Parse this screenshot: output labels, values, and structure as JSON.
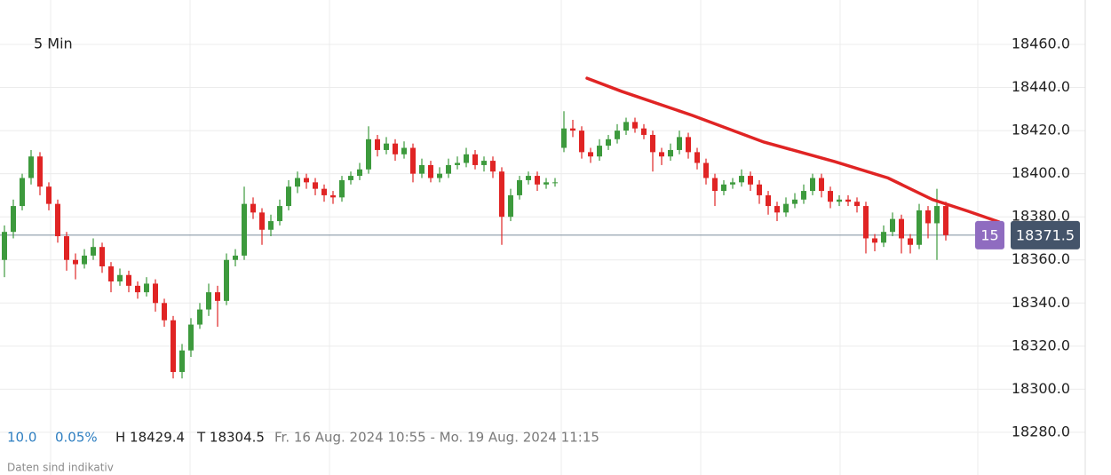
{
  "chart_data": {
    "type": "candlestick",
    "interval": "5 Min",
    "ohlc": [
      [
        18360,
        18376,
        18352,
        18373
      ],
      [
        18373,
        18388,
        18370,
        18385
      ],
      [
        18385,
        18400,
        18383,
        18398
      ],
      [
        18398,
        18411,
        18395,
        18408
      ],
      [
        18408,
        18410,
        18390,
        18394
      ],
      [
        18394,
        18396,
        18383,
        18386
      ],
      [
        18386,
        18388,
        18368,
        18371
      ],
      [
        18371,
        18373,
        18355,
        18360
      ],
      [
        18360,
        18363,
        18351,
        18358
      ],
      [
        18358,
        18365,
        18356,
        18362
      ],
      [
        18362,
        18370,
        18360,
        18366
      ],
      [
        18366,
        18368,
        18354,
        18357
      ],
      [
        18357,
        18359,
        18345,
        18350
      ],
      [
        18350,
        18356,
        18348,
        18353
      ],
      [
        18353,
        18355,
        18345,
        18348
      ],
      [
        18348,
        18350,
        18342,
        18345
      ],
      [
        18345,
        18352,
        18343,
        18349
      ],
      [
        18349,
        18351,
        18336,
        18340
      ],
      [
        18340,
        18342,
        18329,
        18332
      ],
      [
        18332,
        18334,
        18305,
        18308
      ],
      [
        18308,
        18321,
        18305,
        18318
      ],
      [
        18318,
        18333,
        18315,
        18330
      ],
      [
        18330,
        18340,
        18328,
        18337
      ],
      [
        18337,
        18349,
        18334,
        18345
      ],
      [
        18345,
        18348,
        18329,
        18341
      ],
      [
        18341,
        18363,
        18339,
        18360
      ],
      [
        18360,
        18365,
        18357,
        18362
      ],
      [
        18362,
        18394,
        18360,
        18386
      ],
      [
        18386,
        18389,
        18379,
        18382
      ],
      [
        18382,
        18384,
        18367,
        18374
      ],
      [
        18374,
        18381,
        18371,
        18378
      ],
      [
        18378,
        18388,
        18376,
        18385
      ],
      [
        18385,
        18397,
        18383,
        18394
      ],
      [
        18394,
        18401,
        18391,
        18398
      ],
      [
        18398,
        18400,
        18393,
        18396
      ],
      [
        18396,
        18398,
        18390,
        18393
      ],
      [
        18393,
        18395,
        18387,
        18390
      ],
      [
        18390,
        18392,
        18386,
        18389
      ],
      [
        18389,
        18399,
        18387,
        18397
      ],
      [
        18397,
        18401,
        18395,
        18399
      ],
      [
        18399,
        18405,
        18397,
        18402
      ],
      [
        18402,
        18422,
        18400,
        18416
      ],
      [
        18416,
        18418,
        18408,
        18411
      ],
      [
        18411,
        18417,
        18409,
        18414
      ],
      [
        18414,
        18416,
        18406,
        18409
      ],
      [
        18409,
        18415,
        18407,
        18412
      ],
      [
        18412,
        18414,
        18396,
        18400
      ],
      [
        18400,
        18407,
        18398,
        18404
      ],
      [
        18404,
        18406,
        18396,
        18398
      ],
      [
        18398,
        18403,
        18396,
        18400
      ],
      [
        18400,
        18407,
        18398,
        18404
      ],
      [
        18404,
        18408,
        18402,
        18405
      ],
      [
        18405,
        18412,
        18403,
        18409
      ],
      [
        18409,
        18411,
        18402,
        18404
      ],
      [
        18404,
        18408,
        18401,
        18406
      ],
      [
        18406,
        18408,
        18398,
        18401
      ],
      [
        18401,
        18403,
        18367,
        18380
      ],
      [
        18380,
        18393,
        18378,
        18390
      ],
      [
        18390,
        18399,
        18388,
        18397
      ],
      [
        18397,
        18401,
        18395,
        18399
      ],
      [
        18399,
        18401,
        18392,
        18395
      ],
      [
        18395,
        18398,
        18393,
        18396
      ],
      [
        18396,
        18398,
        18394,
        18396
      ],
      [
        18412,
        18429,
        18410,
        18421
      ],
      [
        18421,
        18425,
        18417,
        18420
      ],
      [
        18420,
        18422,
        18407,
        18410
      ],
      [
        18410,
        18412,
        18405,
        18408
      ],
      [
        18408,
        18416,
        18406,
        18413
      ],
      [
        18413,
        18418,
        18411,
        18416
      ],
      [
        18416,
        18423,
        18414,
        18420
      ],
      [
        18420,
        18426,
        18418,
        18424
      ],
      [
        18424,
        18426,
        18419,
        18421
      ],
      [
        18421,
        18423,
        18416,
        18418
      ],
      [
        18418,
        18420,
        18401,
        18410
      ],
      [
        18410,
        18412,
        18404,
        18408
      ],
      [
        18408,
        18414,
        18406,
        18411
      ],
      [
        18411,
        18420,
        18409,
        18417
      ],
      [
        18417,
        18419,
        18407,
        18410
      ],
      [
        18410,
        18412,
        18402,
        18405
      ],
      [
        18405,
        18407,
        18395,
        18398
      ],
      [
        18398,
        18400,
        18385,
        18392
      ],
      [
        18392,
        18397,
        18390,
        18395
      ],
      [
        18395,
        18398,
        18393,
        18396
      ],
      [
        18396,
        18402,
        18394,
        18399
      ],
      [
        18399,
        18401,
        18392,
        18395
      ],
      [
        18395,
        18397,
        18386,
        18390
      ],
      [
        18390,
        18392,
        18381,
        18385
      ],
      [
        18385,
        18387,
        18378,
        18382
      ],
      [
        18382,
        18389,
        18380,
        18386
      ],
      [
        18386,
        18391,
        18384,
        18388
      ],
      [
        18388,
        18395,
        18386,
        18392
      ],
      [
        18392,
        18400,
        18390,
        18398
      ],
      [
        18398,
        18400,
        18389,
        18392
      ],
      [
        18392,
        18394,
        18384,
        18387
      ],
      [
        18387,
        18390,
        18385,
        18388
      ],
      [
        18388,
        18390,
        18385,
        18387
      ],
      [
        18387,
        18389,
        18382,
        18385
      ],
      [
        18385,
        18387,
        18363,
        18370
      ],
      [
        18370,
        18372,
        18364,
        18368
      ],
      [
        18368,
        18376,
        18366,
        18373
      ],
      [
        18373,
        18382,
        18371,
        18379
      ],
      [
        18379,
        18381,
        18363,
        18370
      ],
      [
        18370,
        18372,
        18363,
        18367
      ],
      [
        18367,
        18386,
        18365,
        18383
      ],
      [
        18383,
        18385,
        18370,
        18377
      ],
      [
        18377,
        18393,
        18360,
        18385
      ],
      [
        18385,
        18387,
        18369,
        18371.5
      ]
    ],
    "up_color": "#3d9a3d",
    "down_color": "#e02424",
    "trend": {
      "color": "#e02424",
      "x": [
        65.6,
        69.5,
        77.5,
        85.5,
        93.5,
        99.5,
        104.5,
        108.5,
        112
      ],
      "values": [
        18444.3,
        18438.2,
        18427,
        18414.7,
        18405.6,
        18398,
        18388,
        18382.6,
        18377.6
      ]
    },
    "last": 18371.5,
    "countdown": "15",
    "ylim": [
      18260.2,
      18480.6
    ],
    "yticks": [
      {
        "value": 18280,
        "label": "18280.0"
      },
      {
        "value": 18300,
        "label": "18300.0"
      },
      {
        "value": 18320,
        "label": "18320.0"
      },
      {
        "value": 18340,
        "label": "18340.0"
      },
      {
        "value": 18360,
        "label": "18360.0"
      },
      {
        "value": 18380,
        "label": "18380.0"
      },
      {
        "value": 18400,
        "label": "18400.0"
      },
      {
        "value": 18420,
        "label": "18420.0"
      },
      {
        "value": 18440,
        "label": "18440.0"
      },
      {
        "value": 18460,
        "label": "18460.0"
      }
    ],
    "grid": true,
    "info": {
      "change": "10.0",
      "change_pct": "0.05%",
      "high": "H 18429.4",
      "low": "T 18304.5",
      "range": "Fr. 16 Aug. 2024 10:55 - Mo. 19 Aug. 2024 11:15",
      "note": "Daten sind indikativ"
    }
  }
}
